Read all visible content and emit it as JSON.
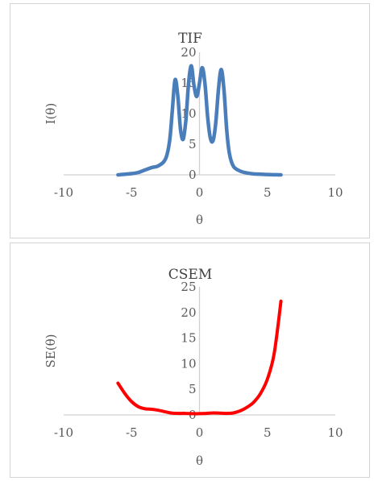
{
  "chart_data": [
    {
      "type": "line",
      "title": "TIF",
      "xlabel": "θ",
      "ylabel": "I(θ)",
      "xlim": [
        -10,
        10
      ],
      "ylim": [
        0,
        20
      ],
      "xticks": [
        -10,
        -5,
        0,
        5,
        10
      ],
      "yticks": [
        0,
        5,
        10,
        15,
        20
      ],
      "grid": false,
      "series": [
        {
          "color": "#4a7ebb",
          "x": [
            -6.0,
            -5.0,
            -4.5,
            -4.0,
            -3.5,
            -3.0,
            -2.5,
            -2.2,
            -2.0,
            -1.8,
            -1.6,
            -1.4,
            -1.2,
            -1.0,
            -0.8,
            -0.6,
            -0.4,
            -0.2,
            0.0,
            0.2,
            0.4,
            0.6,
            0.8,
            1.0,
            1.2,
            1.4,
            1.6,
            1.8,
            2.0,
            2.2,
            2.5,
            3.0,
            3.5,
            4.0,
            5.0,
            6.0
          ],
          "y": [
            0.0,
            0.2,
            0.4,
            0.8,
            1.2,
            1.5,
            2.6,
            5.5,
            10.5,
            15.5,
            13.0,
            7.5,
            5.8,
            9.0,
            15.0,
            17.8,
            14.5,
            12.8,
            15.0,
            17.5,
            15.0,
            9.5,
            6.0,
            5.6,
            8.5,
            14.0,
            17.2,
            14.0,
            7.5,
            3.5,
            1.4,
            0.6,
            0.3,
            0.15,
            0.05,
            0.0
          ]
        }
      ]
    },
    {
      "type": "line",
      "title": "CSEM",
      "xlabel": "θ",
      "ylabel": "SE(θ)",
      "xlim": [
        -10,
        10
      ],
      "ylim": [
        0,
        25
      ],
      "xticks": [
        -10,
        -5,
        0,
        5,
        10
      ],
      "yticks": [
        0,
        5,
        10,
        15,
        20,
        25
      ],
      "grid": false,
      "series": [
        {
          "color": "#ff0000",
          "x": [
            -6.0,
            -5.5,
            -5.0,
            -4.5,
            -4.0,
            -3.5,
            -3.0,
            -2.5,
            -2.0,
            -1.5,
            -1.0,
            -0.5,
            0.0,
            0.5,
            1.0,
            1.5,
            2.0,
            2.5,
            3.0,
            3.5,
            4.0,
            4.5,
            5.0,
            5.5,
            6.0
          ],
          "y": [
            6.2,
            4.2,
            2.6,
            1.6,
            1.2,
            1.1,
            0.9,
            0.6,
            0.35,
            0.3,
            0.3,
            0.25,
            0.25,
            0.3,
            0.4,
            0.35,
            0.3,
            0.4,
            0.8,
            1.5,
            2.5,
            4.2,
            7.0,
            12.0,
            22.2
          ]
        }
      ]
    }
  ]
}
